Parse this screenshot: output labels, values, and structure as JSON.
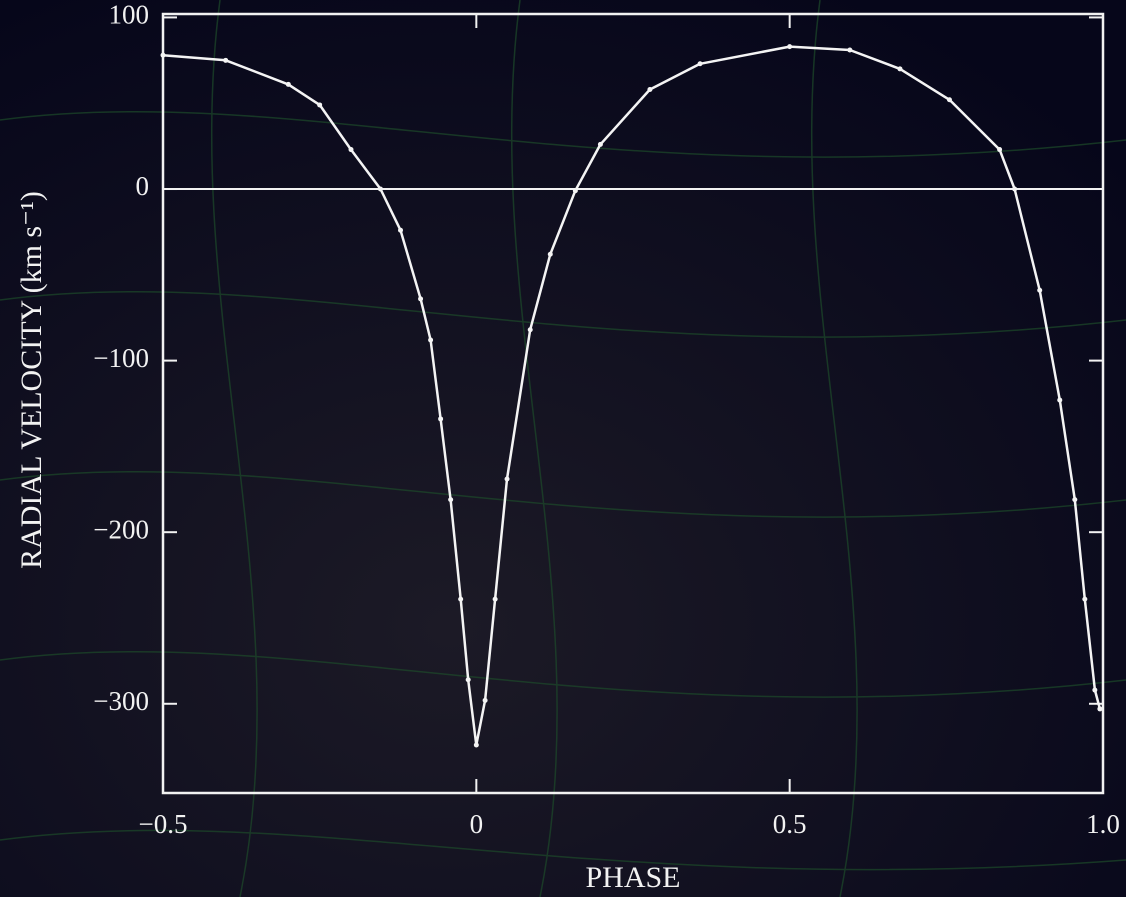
{
  "chart_data": {
    "type": "line",
    "x_label": "PHASE",
    "y_label": "RADIAL VELOCITY (km s⁻¹)",
    "xlim": [
      -0.5,
      1.0
    ],
    "ylim": [
      -352,
      102
    ],
    "xticks": [
      {
        "value": -0.5,
        "label": "−0.5"
      },
      0,
      0.5,
      {
        "value": 1.0,
        "label": "1.0"
      }
    ],
    "yticks": [
      100,
      0,
      {
        "value": -100,
        "label": "−100"
      },
      {
        "value": -200,
        "label": "−200"
      },
      {
        "value": -300,
        "label": "−300"
      }
    ],
    "zero_line": true,
    "series": [
      {
        "color": "#f4f4f4",
        "x": [
          -0.5,
          -0.4,
          -0.3,
          -0.25,
          -0.2,
          -0.153,
          -0.121,
          -0.089,
          -0.073,
          -0.057,
          -0.041,
          -0.025,
          -0.013,
          0,
          0.014,
          0.03,
          0.049,
          0.086,
          0.118,
          0.158,
          0.198,
          0.277,
          0.357,
          0.5,
          0.596,
          0.676,
          0.755,
          0.835,
          0.859,
          0.899,
          0.931,
          0.955,
          0.971,
          0.987,
          0.995
        ],
        "values": [
          78,
          75,
          61,
          49,
          23,
          0,
          -24,
          -64,
          -88,
          -134,
          -181,
          -239,
          -286,
          -324,
          -298,
          -239,
          -169,
          -82,
          -38,
          -1,
          26,
          58,
          73,
          83,
          81,
          70,
          52,
          23,
          0,
          -59,
          -123,
          -181,
          -239,
          -292,
          -303
        ]
      }
    ]
  }
}
